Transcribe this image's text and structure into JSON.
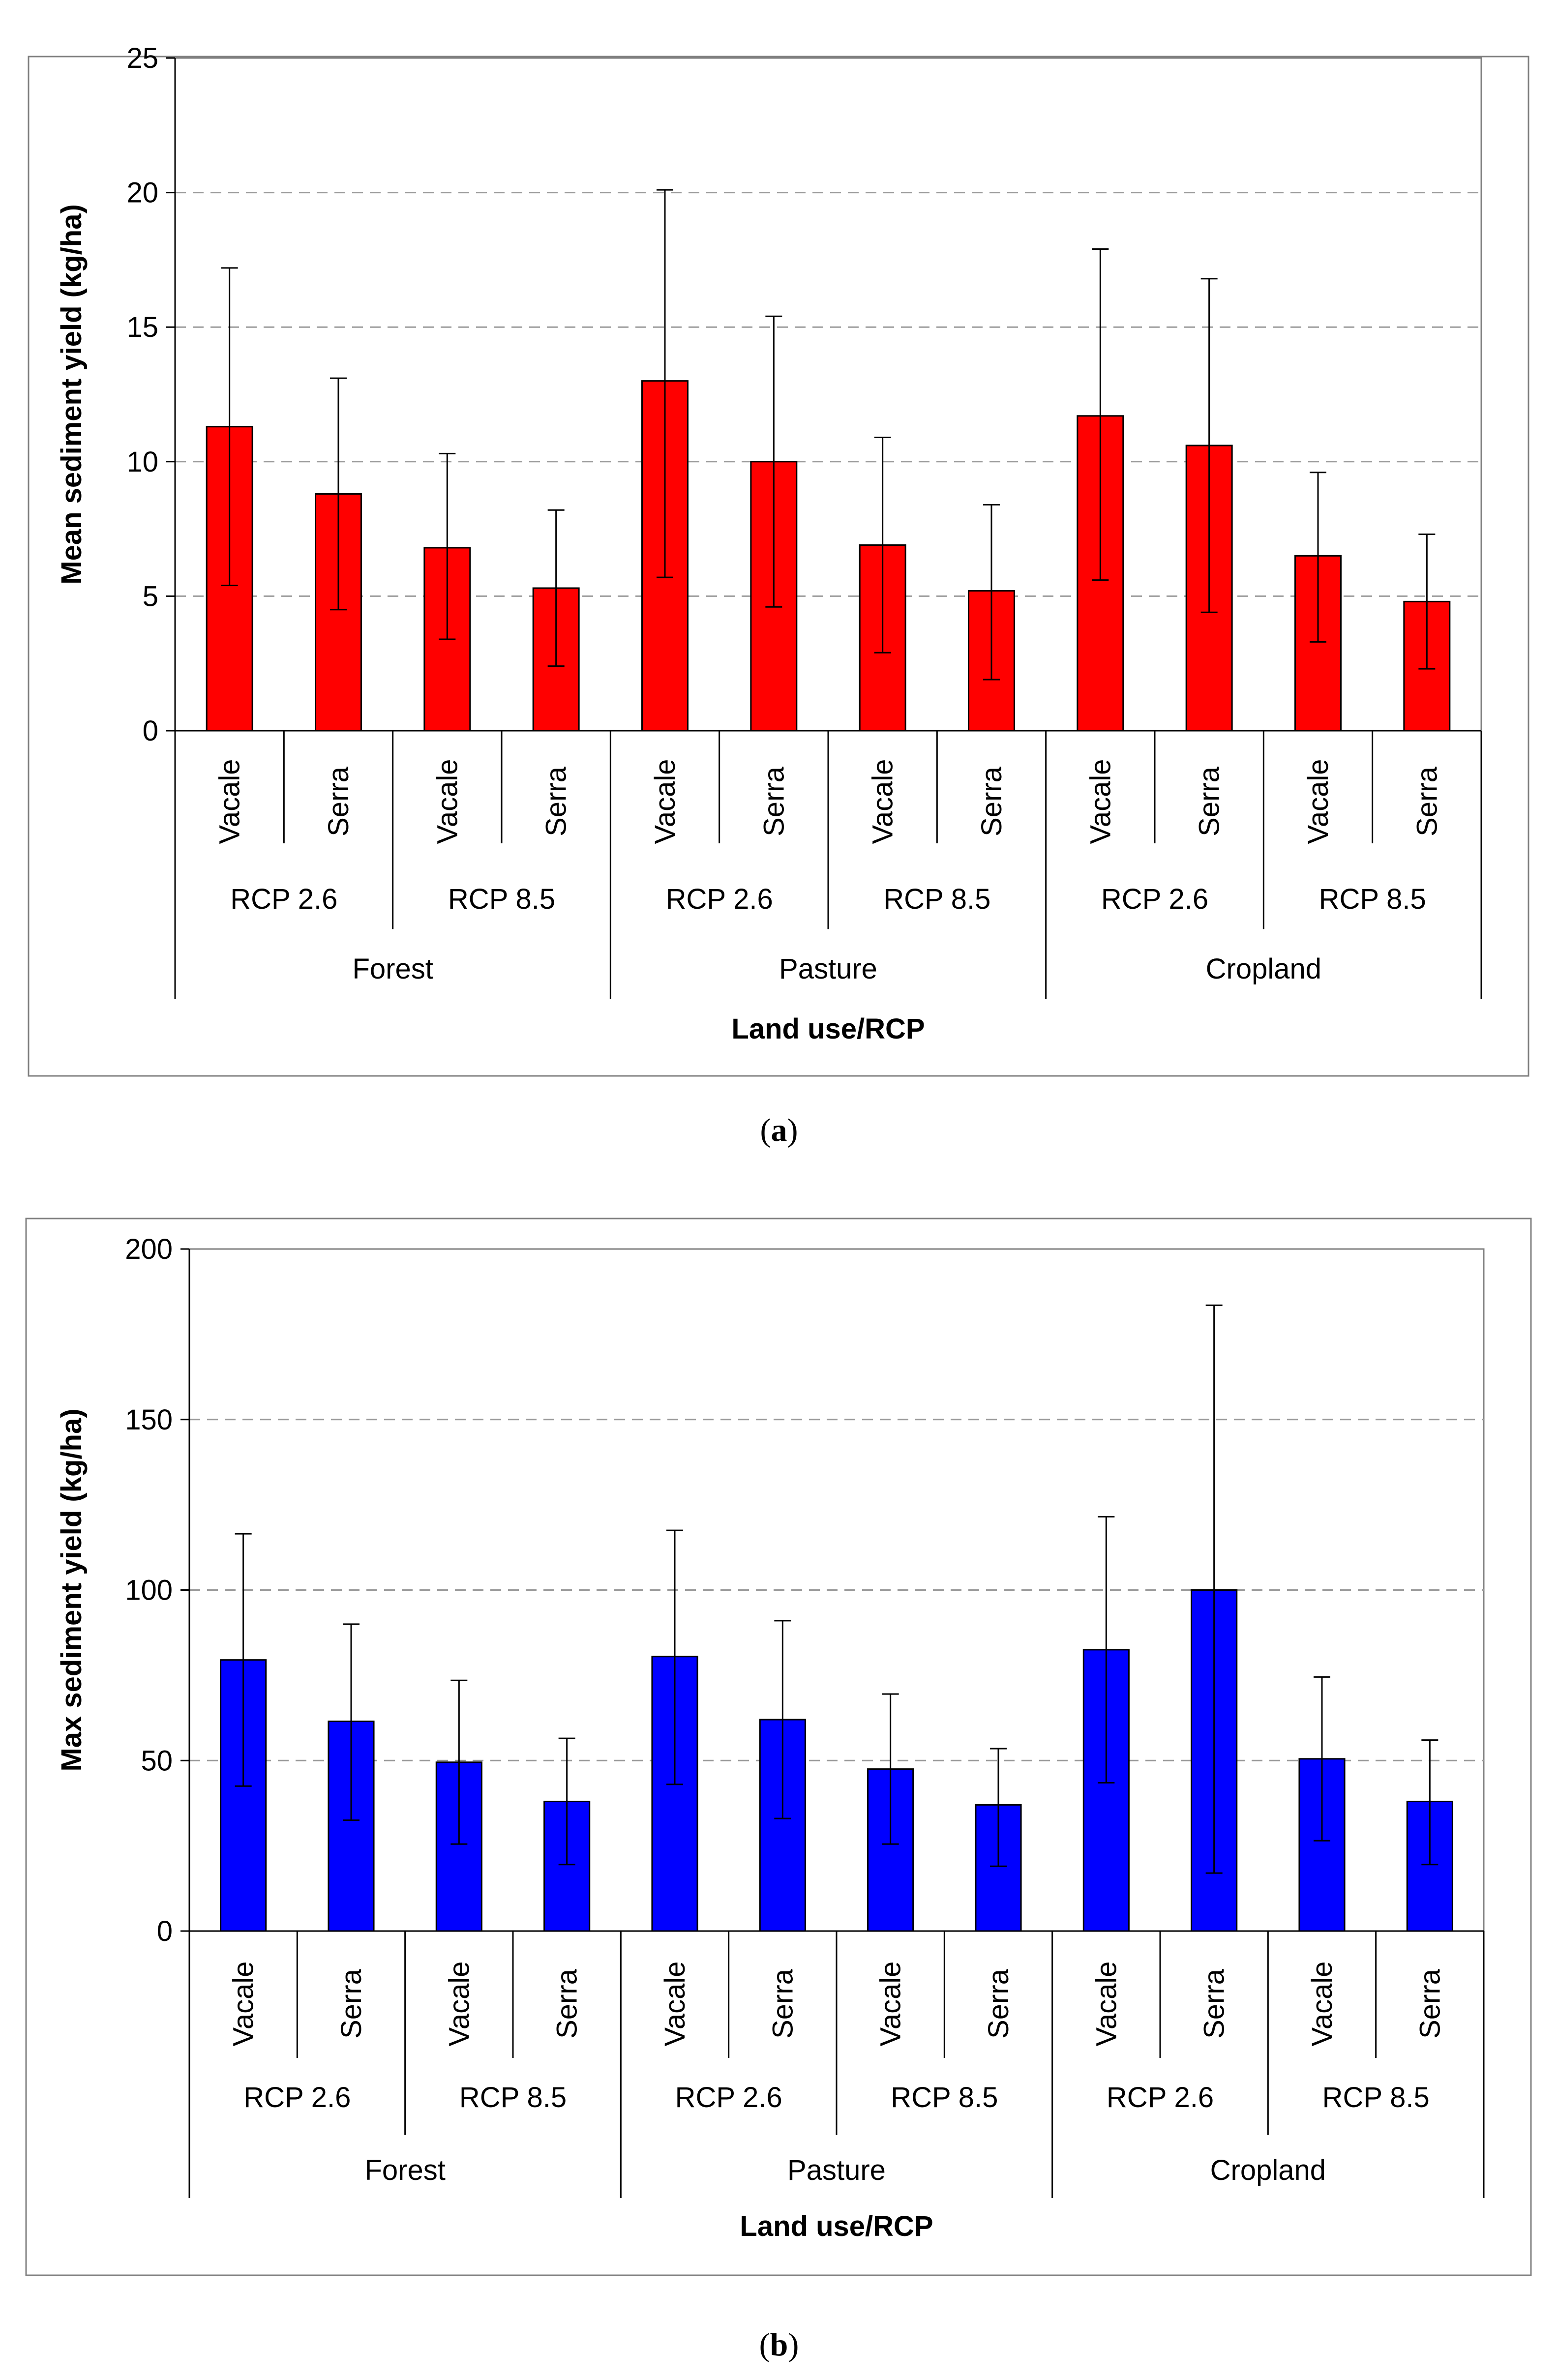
{
  "chart_data": [
    {
      "type": "bar",
      "ylabel": "Mean sediment yield (kg/ha)",
      "xlabel": "Land use/RCP",
      "ylim": [
        0,
        25
      ],
      "yticks": [
        "0",
        "5",
        "10",
        "15",
        "20",
        "25"
      ],
      "categories": [
        "Vacale",
        "Serra",
        "Vacale",
        "Serra",
        "Vacale",
        "Serra",
        "Vacale",
        "Serra",
        "Vacale",
        "Serra",
        "Vacale",
        "Serra"
      ],
      "rcp_groups": [
        "RCP 2.6",
        "RCP 8.5",
        "RCP 2.6",
        "RCP 8.5",
        "RCP 2.6",
        "RCP 8.5"
      ],
      "land_use_groups": [
        "Forest",
        "Pasture",
        "Cropland"
      ],
      "values": [
        11.3,
        8.8,
        6.8,
        5.3,
        13.0,
        10.0,
        6.9,
        5.2,
        11.7,
        10.6,
        6.5,
        4.8
      ],
      "error_low": [
        5.4,
        4.5,
        3.4,
        2.4,
        5.7,
        4.6,
        2.9,
        1.9,
        5.6,
        4.4,
        3.3,
        2.3
      ],
      "error_high": [
        17.2,
        13.1,
        10.3,
        8.2,
        20.1,
        15.4,
        10.9,
        8.4,
        17.9,
        16.8,
        9.6,
        7.3
      ],
      "bar_color": "#ff0000",
      "grid": true,
      "caption_open": "(",
      "caption_letter": "a",
      "caption_close": ")"
    },
    {
      "type": "bar",
      "ylabel": "Max sediment yield (kg/ha)",
      "xlabel": "Land use/RCP",
      "ylim": [
        0,
        200
      ],
      "yticks": [
        "0",
        "50",
        "100",
        "150",
        "200"
      ],
      "categories": [
        "Vacale",
        "Serra",
        "Vacale",
        "Serra",
        "Vacale",
        "Serra",
        "Vacale",
        "Serra",
        "Vacale",
        "Serra",
        "Vacale",
        "Serra"
      ],
      "rcp_groups": [
        "RCP 2.6",
        "RCP 8.5",
        "RCP 2.6",
        "RCP 8.5",
        "RCP 2.6",
        "RCP 8.5"
      ],
      "land_use_groups": [
        "Forest",
        "Pasture",
        "Cropland"
      ],
      "values": [
        79.5,
        61.5,
        49.5,
        38.0,
        80.5,
        62.0,
        47.5,
        37.0,
        82.5,
        100.0,
        50.5,
        38.0
      ],
      "error_low": [
        42.5,
        32.5,
        25.5,
        19.5,
        43.0,
        33.0,
        25.5,
        19.0,
        43.5,
        17.0,
        26.5,
        19.5
      ],
      "error_high": [
        116.5,
        90.0,
        73.5,
        56.5,
        117.5,
        91.0,
        69.5,
        53.5,
        121.5,
        183.5,
        74.5,
        56.0
      ],
      "bar_color": "#0000ff",
      "grid": true,
      "caption_open": "(",
      "caption_letter": "b",
      "caption_close": ")"
    }
  ]
}
